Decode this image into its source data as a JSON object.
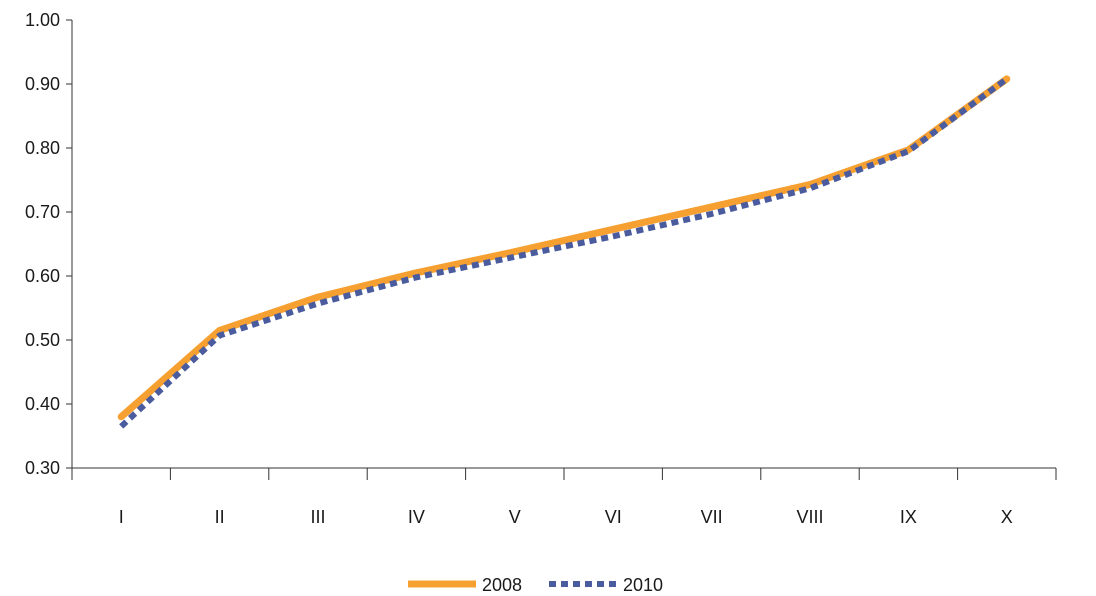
{
  "chart_data": {
    "type": "line",
    "title": "",
    "xlabel": "",
    "ylabel": "",
    "categories": [
      "I",
      "II",
      "III",
      "IV",
      "V",
      "VI",
      "VII",
      "VIII",
      "IX",
      "X"
    ],
    "ylim": [
      0.3,
      1.0
    ],
    "yticks": [
      "0.30",
      "0.40",
      "0.50",
      "0.60",
      "0.70",
      "0.80",
      "0.90",
      "1.00"
    ],
    "yticks_values": [
      0.3,
      0.4,
      0.5,
      0.6,
      0.7,
      0.8,
      0.9,
      1.0
    ],
    "grid": false,
    "legend_position": "bottom",
    "series": [
      {
        "name": "2008",
        "values": [
          0.38,
          0.515,
          0.567,
          0.605,
          0.638,
          0.673,
          0.708,
          0.743,
          0.797,
          0.908
        ],
        "color": "#F5A031",
        "style": "solid"
      },
      {
        "name": "2010",
        "values": [
          0.365,
          0.507,
          0.557,
          0.598,
          0.63,
          0.662,
          0.697,
          0.737,
          0.795,
          0.908
        ],
        "color": "#4A5B9E",
        "style": "dashed"
      }
    ]
  }
}
